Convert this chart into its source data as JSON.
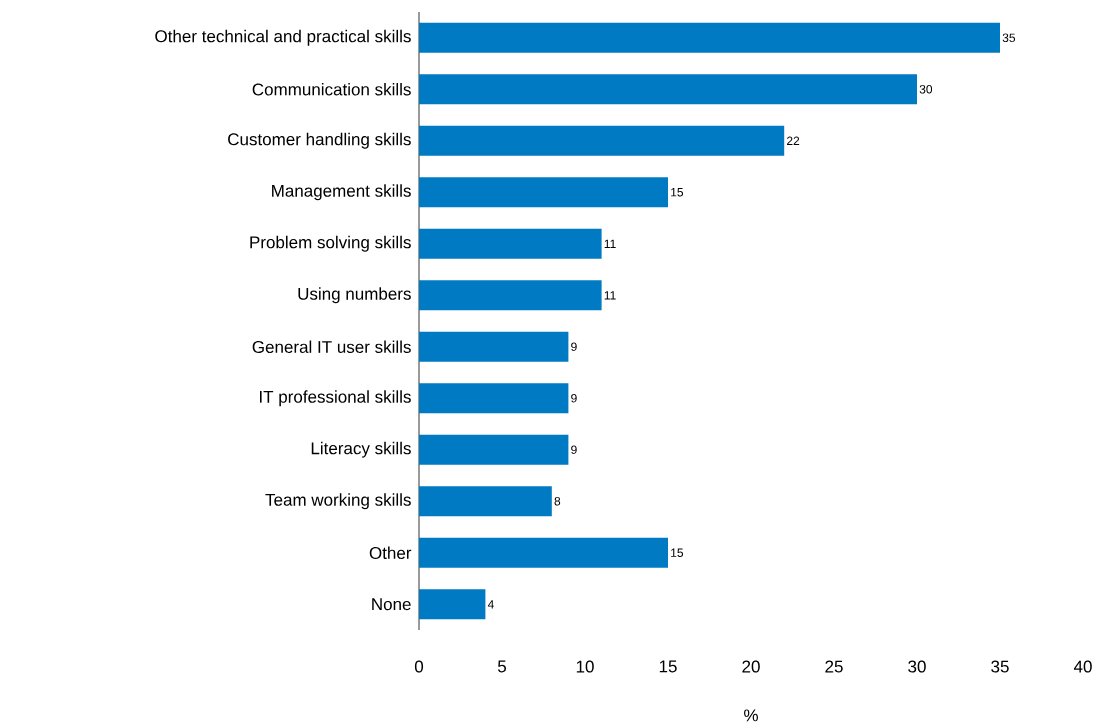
{
  "chart_data": {
    "type": "bar",
    "orientation": "horizontal",
    "categories": [
      "Other technical and practical skills",
      "Communication skills",
      "Customer handling skills",
      "Management skills",
      "Problem solving skills",
      "Using numbers",
      "General IT user skills",
      "IT professional skills",
      "Literacy skills",
      "Team working skills",
      "Other",
      "None"
    ],
    "values": [
      35,
      30,
      22,
      15,
      11,
      11,
      9,
      9,
      9,
      8,
      15,
      4
    ],
    "color": "#007ac2",
    "data_labels": true,
    "xlabel": "%",
    "xlim": [
      0,
      40
    ],
    "xticks": [
      0,
      5,
      10,
      15,
      20,
      25,
      30,
      35,
      40
    ],
    "grid": false
  }
}
